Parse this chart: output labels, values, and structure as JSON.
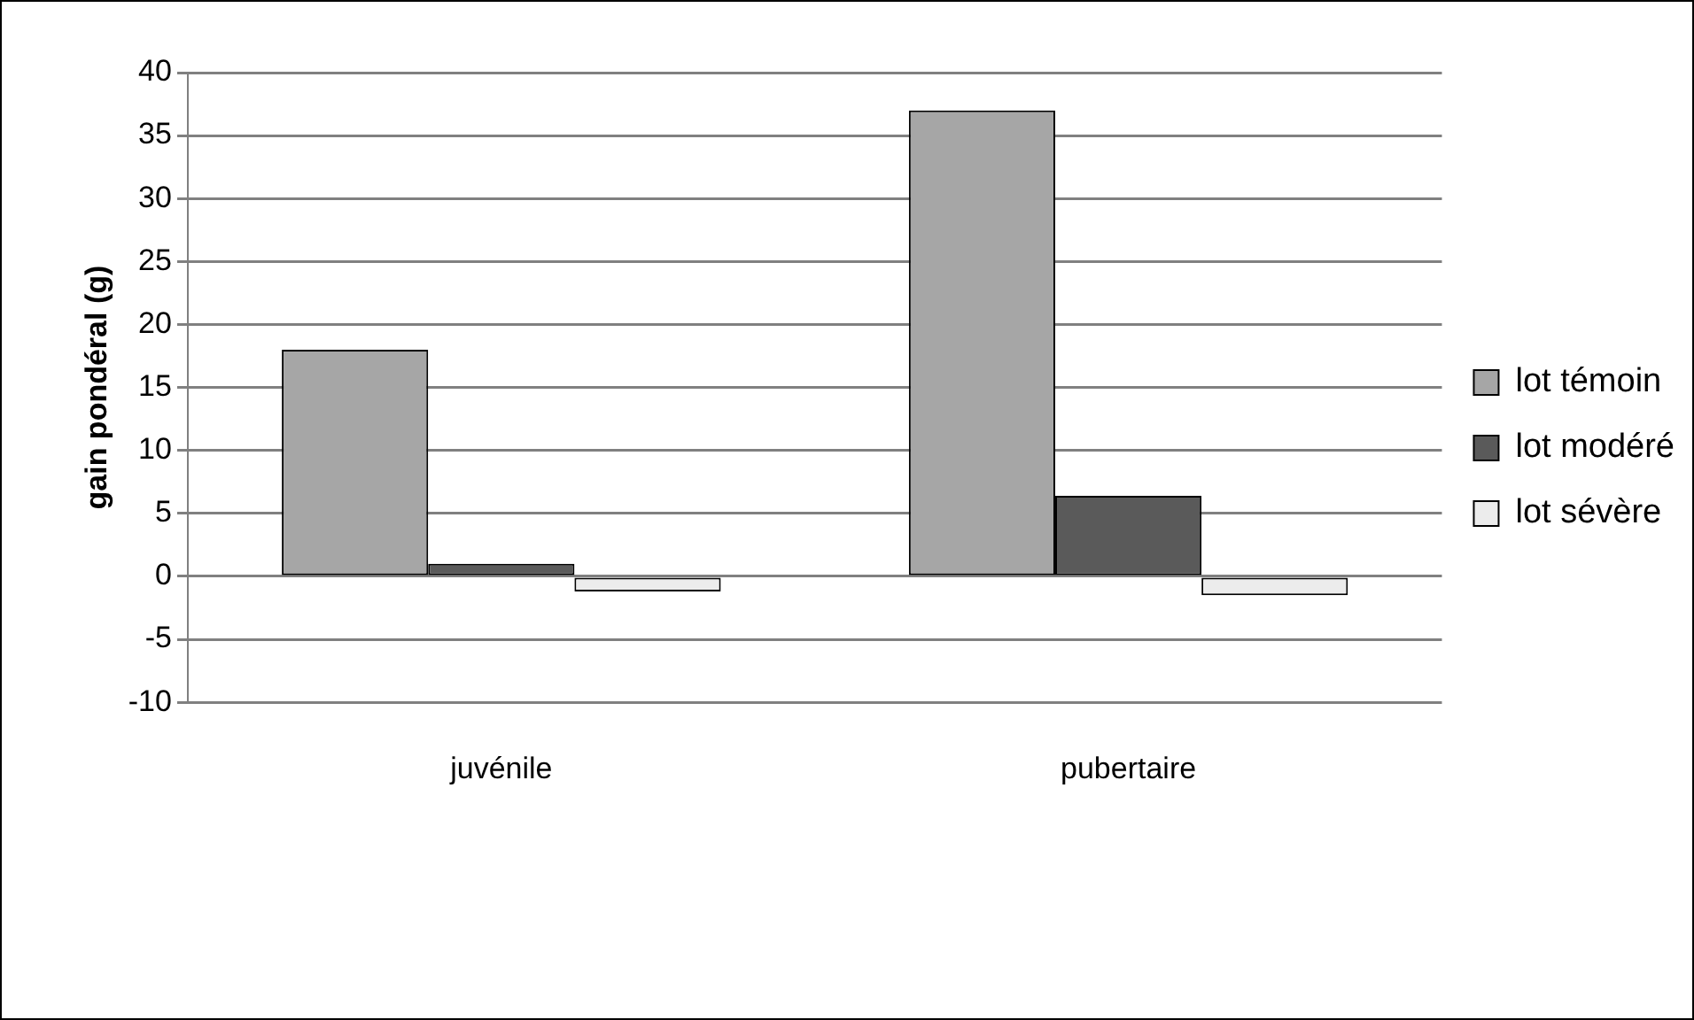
{
  "chart_data": {
    "type": "bar",
    "ylabel": "gain pondéral (g)",
    "categories": [
      "juvénile",
      "pubertaire"
    ],
    "series": [
      {
        "name": "lot témoin",
        "color": "#a6a6a6",
        "values": [
          18,
          37
        ]
      },
      {
        "name": "lot modéré",
        "color": "#5a5a5a",
        "values": [
          1,
          6.4
        ]
      },
      {
        "name": "lot sévère",
        "color": "#ececec",
        "values": [
          -1.2,
          -1.5
        ]
      }
    ],
    "ylim": [
      -10,
      40
    ],
    "yticks": [
      -10,
      -5,
      0,
      5,
      10,
      15,
      20,
      25,
      30,
      35,
      40
    ],
    "grid": "y",
    "legend": "right"
  }
}
